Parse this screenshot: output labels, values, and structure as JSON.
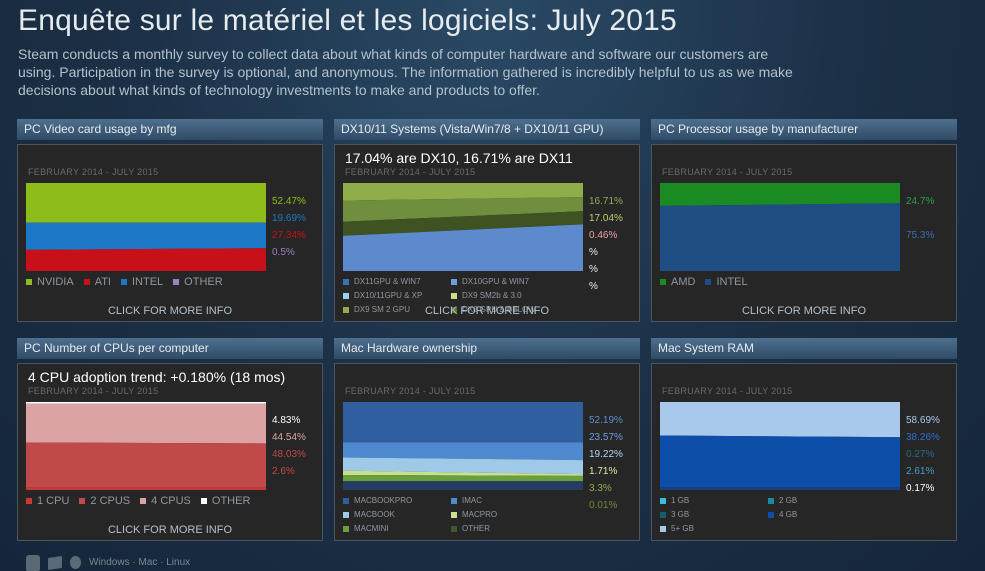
{
  "page": {
    "title": "Enquête sur le matériel et les logiciels: July 2015",
    "intro": "Steam conducts a monthly survey to collect data about what kinds of computer hardware and software our customers are using. Participation in the survey is optional, and anonymous. The information gathered is incredibly helpful to us as we make decisions about what kinds of technology investments to make and products to offer.",
    "more_info": "CLICK FOR MORE INFO"
  },
  "panels": [
    {
      "title": "PC Video card usage by mfg",
      "trend": "",
      "period": "FEBRUARY 2014 - JULY 2015",
      "bands": [
        {
          "color": "#8ebc1a",
          "start": 45,
          "end": 45
        },
        {
          "color": "#1e78c8",
          "start": 76,
          "end": 74
        },
        {
          "color": "#c8101a",
          "start": 100,
          "end": 100
        }
      ],
      "pcts": [
        {
          "text": "52.47%",
          "color": "#8ebc1a"
        },
        {
          "text": "19.69%",
          "color": "#1e78c8"
        },
        {
          "text": "27.34%",
          "color": "#c8101a"
        },
        {
          "text": "0.5%",
          "color": "#9b7fc7"
        }
      ],
      "legend": [
        {
          "label": "NVIDIA",
          "color": "#8ebc1a"
        },
        {
          "label": "ATI",
          "color": "#c8101a"
        },
        {
          "label": "INTEL",
          "color": "#1e78c8"
        },
        {
          "label": "OTHER",
          "color": "#9b7fc7"
        }
      ],
      "legend_small": false
    },
    {
      "title": "DX10/11 Systems (Vista/Win7/8 + DX10/11 GPU)",
      "trend": "17.04% are DX10, 16.71% are DX11",
      "period": "FEBRUARY 2014 - JULY 2015",
      "bands": [
        {
          "color": "#8fae4a",
          "start": 20,
          "end": 16
        },
        {
          "color": "#6f8f3e",
          "start": 44,
          "end": 32
        },
        {
          "color": "#3e5222",
          "start": 60,
          "end": 47
        },
        {
          "color": "#5d8acc",
          "start": 100,
          "end": 100
        }
      ],
      "pcts": [
        {
          "text": "16.71%",
          "color": "#8fae4a"
        },
        {
          "text": "17.04%",
          "color": "#b8d06a"
        },
        {
          "text": "0.46%",
          "color": "#f0a0a8"
        },
        {
          "text": "%",
          "color": "#e6ebee"
        },
        {
          "text": "%",
          "color": "#e6ebee"
        },
        {
          "text": "%",
          "color": "#e6ebee"
        }
      ],
      "legend": [
        {
          "label": "DX11GPU & WIN7",
          "color": "#3d6fb8"
        },
        {
          "label": "DX10GPU & WIN7",
          "color": "#6a9ee0"
        },
        {
          "label": "DX10/11GPU & XP",
          "color": "#9ad0f0"
        },
        {
          "label": "DX9 SM2b & 3.0",
          "color": "#c8e08a"
        },
        {
          "label": "DX9 SM 2 GPU",
          "color": "#8fae4a"
        },
        {
          "label": "DX8 GPU & BELOW",
          "color": "#5b7a30"
        }
      ],
      "legend_small": true
    },
    {
      "title": "PC Processor usage by manufacturer",
      "trend": "",
      "period": "FEBRUARY 2014 - JULY 2015",
      "bands": [
        {
          "color": "#1a8a22",
          "start": 26,
          "end": 23
        },
        {
          "color": "#1f4e85",
          "start": 100,
          "end": 100
        }
      ],
      "pcts": [
        {
          "text": "24.7%",
          "color": "#2aa43a"
        },
        {
          "text": "",
          "color": "#3a6fa8"
        },
        {
          "text": "75.3%",
          "color": "#3a6fa8"
        }
      ],
      "legend": [
        {
          "label": "AMD",
          "color": "#1a8a22"
        },
        {
          "label": "INTEL",
          "color": "#1f4e85"
        }
      ],
      "legend_small": false
    },
    {
      "title": "PC Number of CPUs per computer",
      "trend": "4 CPU adoption trend: +0.180% (18 mos)",
      "period": "FEBRUARY 2014 - JULY 2015",
      "bands": [
        {
          "color": "#ffffff",
          "start": 2,
          "end": 2
        },
        {
          "color": "#dba3a3",
          "start": 46,
          "end": 47
        },
        {
          "color": "#c0494a",
          "start": 97,
          "end": 97
        },
        {
          "color": "#c8393a",
          "start": 100,
          "end": 100
        }
      ],
      "pcts": [
        {
          "text": "4.83%",
          "color": "#ffffff"
        },
        {
          "text": "44.54%",
          "color": "#dba3a3"
        },
        {
          "text": "48.03%",
          "color": "#c0494a"
        },
        {
          "text": "2.6%",
          "color": "#c0494a"
        }
      ],
      "legend": [
        {
          "label": "1 CPU",
          "color": "#c8393a"
        },
        {
          "label": "2 CPUS",
          "color": "#c0494a"
        },
        {
          "label": "4 CPUS",
          "color": "#dba3a3"
        },
        {
          "label": "OTHER",
          "color": "#ffffff"
        }
      ],
      "legend_small": false
    },
    {
      "title": "Mac Hardware ownership",
      "trend": "",
      "period": "FEBRUARY 2014 - JULY 2015",
      "bands": [
        {
          "color": "#2f5f9e",
          "start": 46,
          "end": 46
        },
        {
          "color": "#4f89d0",
          "start": 63,
          "end": 66
        },
        {
          "color": "#9ecae8",
          "start": 78,
          "end": 82
        },
        {
          "color": "#c9e090",
          "start": 83,
          "end": 84
        },
        {
          "color": "#6a9f3e",
          "start": 90,
          "end": 90
        },
        {
          "color": "#263c60",
          "start": 100,
          "end": 100
        }
      ],
      "pcts": [
        {
          "text": "52.19%",
          "color": "#5f8fcc"
        },
        {
          "text": "23.57%",
          "color": "#6a9ee0"
        },
        {
          "text": "19.22%",
          "color": "#b0d6f0"
        },
        {
          "text": "1.71%",
          "color": "#e6e8a0"
        },
        {
          "text": "3.3%",
          "color": "#8fae4a"
        },
        {
          "text": "0.01%",
          "color": "#6a8a3e"
        }
      ],
      "legend": [
        {
          "label": "MACBOOKPRO",
          "color": "#2f5f9e"
        },
        {
          "label": "IMAC",
          "color": "#4f89d0"
        },
        {
          "label": "MACBOOK",
          "color": "#9ecae8"
        },
        {
          "label": "MACPRO",
          "color": "#c9e090"
        },
        {
          "label": "MACMINI",
          "color": "#6a9f3e"
        },
        {
          "label": "OTHER",
          "color": "#3e5a2a"
        }
      ],
      "legend_small": true
    },
    {
      "title": "Mac System RAM",
      "trend": "",
      "period": "FEBRUARY 2014 - JULY 2015",
      "bands": [
        {
          "color": "#a8c8ec",
          "start": 38,
          "end": 40
        },
        {
          "color": "#0c4ea8",
          "start": 97,
          "end": 97
        },
        {
          "color": "#1a3e80",
          "start": 100,
          "end": 100
        }
      ],
      "pcts": [
        {
          "text": "58.69%",
          "color": "#a8c8ec"
        },
        {
          "text": "38.26%",
          "color": "#2f6fd0"
        },
        {
          "text": "0.27%",
          "color": "#2a6a8a"
        },
        {
          "text": "2.61%",
          "color": "#3aa0c8"
        },
        {
          "text": "0.17%",
          "color": "#ffffff"
        }
      ],
      "legend": [
        {
          "label": "1 GB",
          "color": "#38c0d8"
        },
        {
          "label": "2 GB",
          "color": "#1a8aa0"
        },
        {
          "label": "3 GB",
          "color": "#12606e"
        },
        {
          "label": "4 GB",
          "color": "#0c4ea8"
        },
        {
          "label": "5+ GB",
          "color": "#a8c8ec"
        }
      ],
      "legend_small": true
    }
  ],
  "bottom": {
    "text": "Windows · Mac · Linux"
  }
}
